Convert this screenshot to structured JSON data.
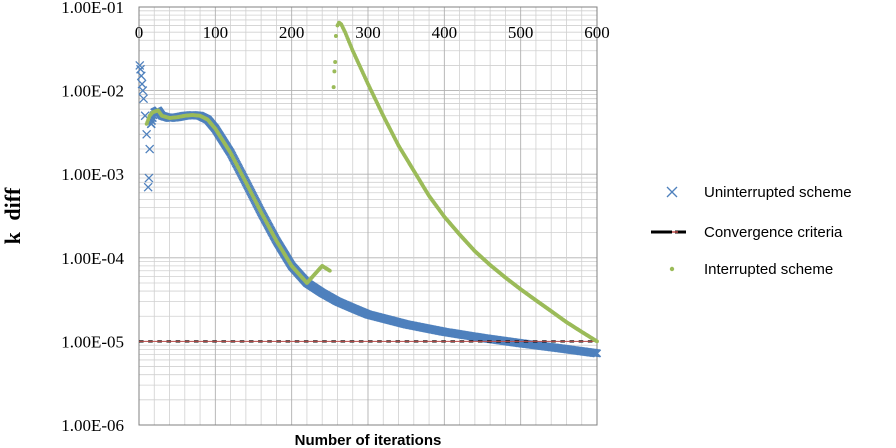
{
  "chart_data": {
    "type": "scatter",
    "xlabel": "Number of iterations",
    "ylabel": "k_diff",
    "ylabel_parts": {
      "main": "k",
      "sub": "diff"
    },
    "xlim": [
      0,
      600
    ],
    "ylim": [
      1e-06,
      0.1
    ],
    "y_scale": "log",
    "x_ticks": [
      "0",
      "100",
      "200",
      "300",
      "400",
      "500",
      "600"
    ],
    "x_tick_values": [
      0,
      100,
      200,
      300,
      400,
      500,
      600
    ],
    "y_ticks": [
      "1.00E-01",
      "1.00E-02",
      "1.00E-03",
      "1.00E-04",
      "1.00E-05",
      "1.00E-06"
    ],
    "y_tick_values": [
      0.1,
      0.01,
      0.001,
      0.0001,
      1e-05,
      1e-06
    ],
    "x_axis_position": "top",
    "grid": true,
    "legend_position": "right",
    "series": [
      {
        "name": "Uninterrupted scheme",
        "marker": "x",
        "color": "#4f81bd",
        "x": [
          1,
          2,
          3,
          4,
          5,
          6,
          8,
          10,
          12,
          13,
          14,
          16,
          20,
          25,
          30,
          40,
          50,
          60,
          70,
          80,
          90,
          100,
          120,
          140,
          160,
          180,
          200,
          220,
          240,
          260,
          280,
          300,
          350,
          400,
          450,
          500,
          550,
          600
        ],
        "y": [
          0.02,
          0.018,
          0.015,
          0.012,
          0.01,
          0.008,
          0.005,
          0.003,
          0.0007,
          0.0009,
          0.002,
          0.004,
          0.0055,
          0.0058,
          0.005,
          0.0047,
          0.0048,
          0.005,
          0.0051,
          0.005,
          0.0045,
          0.0035,
          0.0018,
          0.0008,
          0.00035,
          0.00016,
          8e-05,
          5e-05,
          3.8e-05,
          3e-05,
          2.5e-05,
          2.1e-05,
          1.6e-05,
          1.3e-05,
          1.1e-05,
          9.5e-06,
          8.3e-06,
          7.2e-06
        ]
      },
      {
        "name": "Convergence criteria",
        "marker": "dash",
        "color": "#000000",
        "x": [
          0,
          600
        ],
        "y": [
          1e-05,
          1e-05
        ]
      },
      {
        "name": "Interrupted scheme",
        "marker": "dot",
        "color": "#9bbb59",
        "x": [
          10,
          14,
          18,
          25,
          30,
          40,
          50,
          60,
          70,
          80,
          90,
          100,
          120,
          140,
          160,
          180,
          200,
          220,
          240,
          250,
          255,
          256,
          257,
          258,
          260,
          262,
          265,
          270,
          280,
          300,
          320,
          340,
          360,
          380,
          400,
          420,
          440,
          460,
          480,
          500,
          520,
          540,
          560,
          580,
          600
        ],
        "y": [
          0.004,
          0.005,
          0.0055,
          0.0058,
          0.005,
          0.0047,
          0.0048,
          0.005,
          0.0051,
          0.005,
          0.0045,
          0.0035,
          0.0018,
          0.0008,
          0.00035,
          0.00016,
          8e-05,
          5e-05,
          8e-05,
          7e-05,
          0.011,
          0.017,
          0.022,
          0.045,
          0.06,
          0.065,
          0.062,
          0.05,
          0.03,
          0.012,
          0.005,
          0.0022,
          0.0011,
          0.00055,
          0.00031,
          0.00019,
          0.00012,
          8.2e-05,
          5.8e-05,
          4.2e-05,
          3.1e-05,
          2.3e-05,
          1.7e-05,
          1.3e-05,
          1e-05
        ]
      }
    ]
  }
}
